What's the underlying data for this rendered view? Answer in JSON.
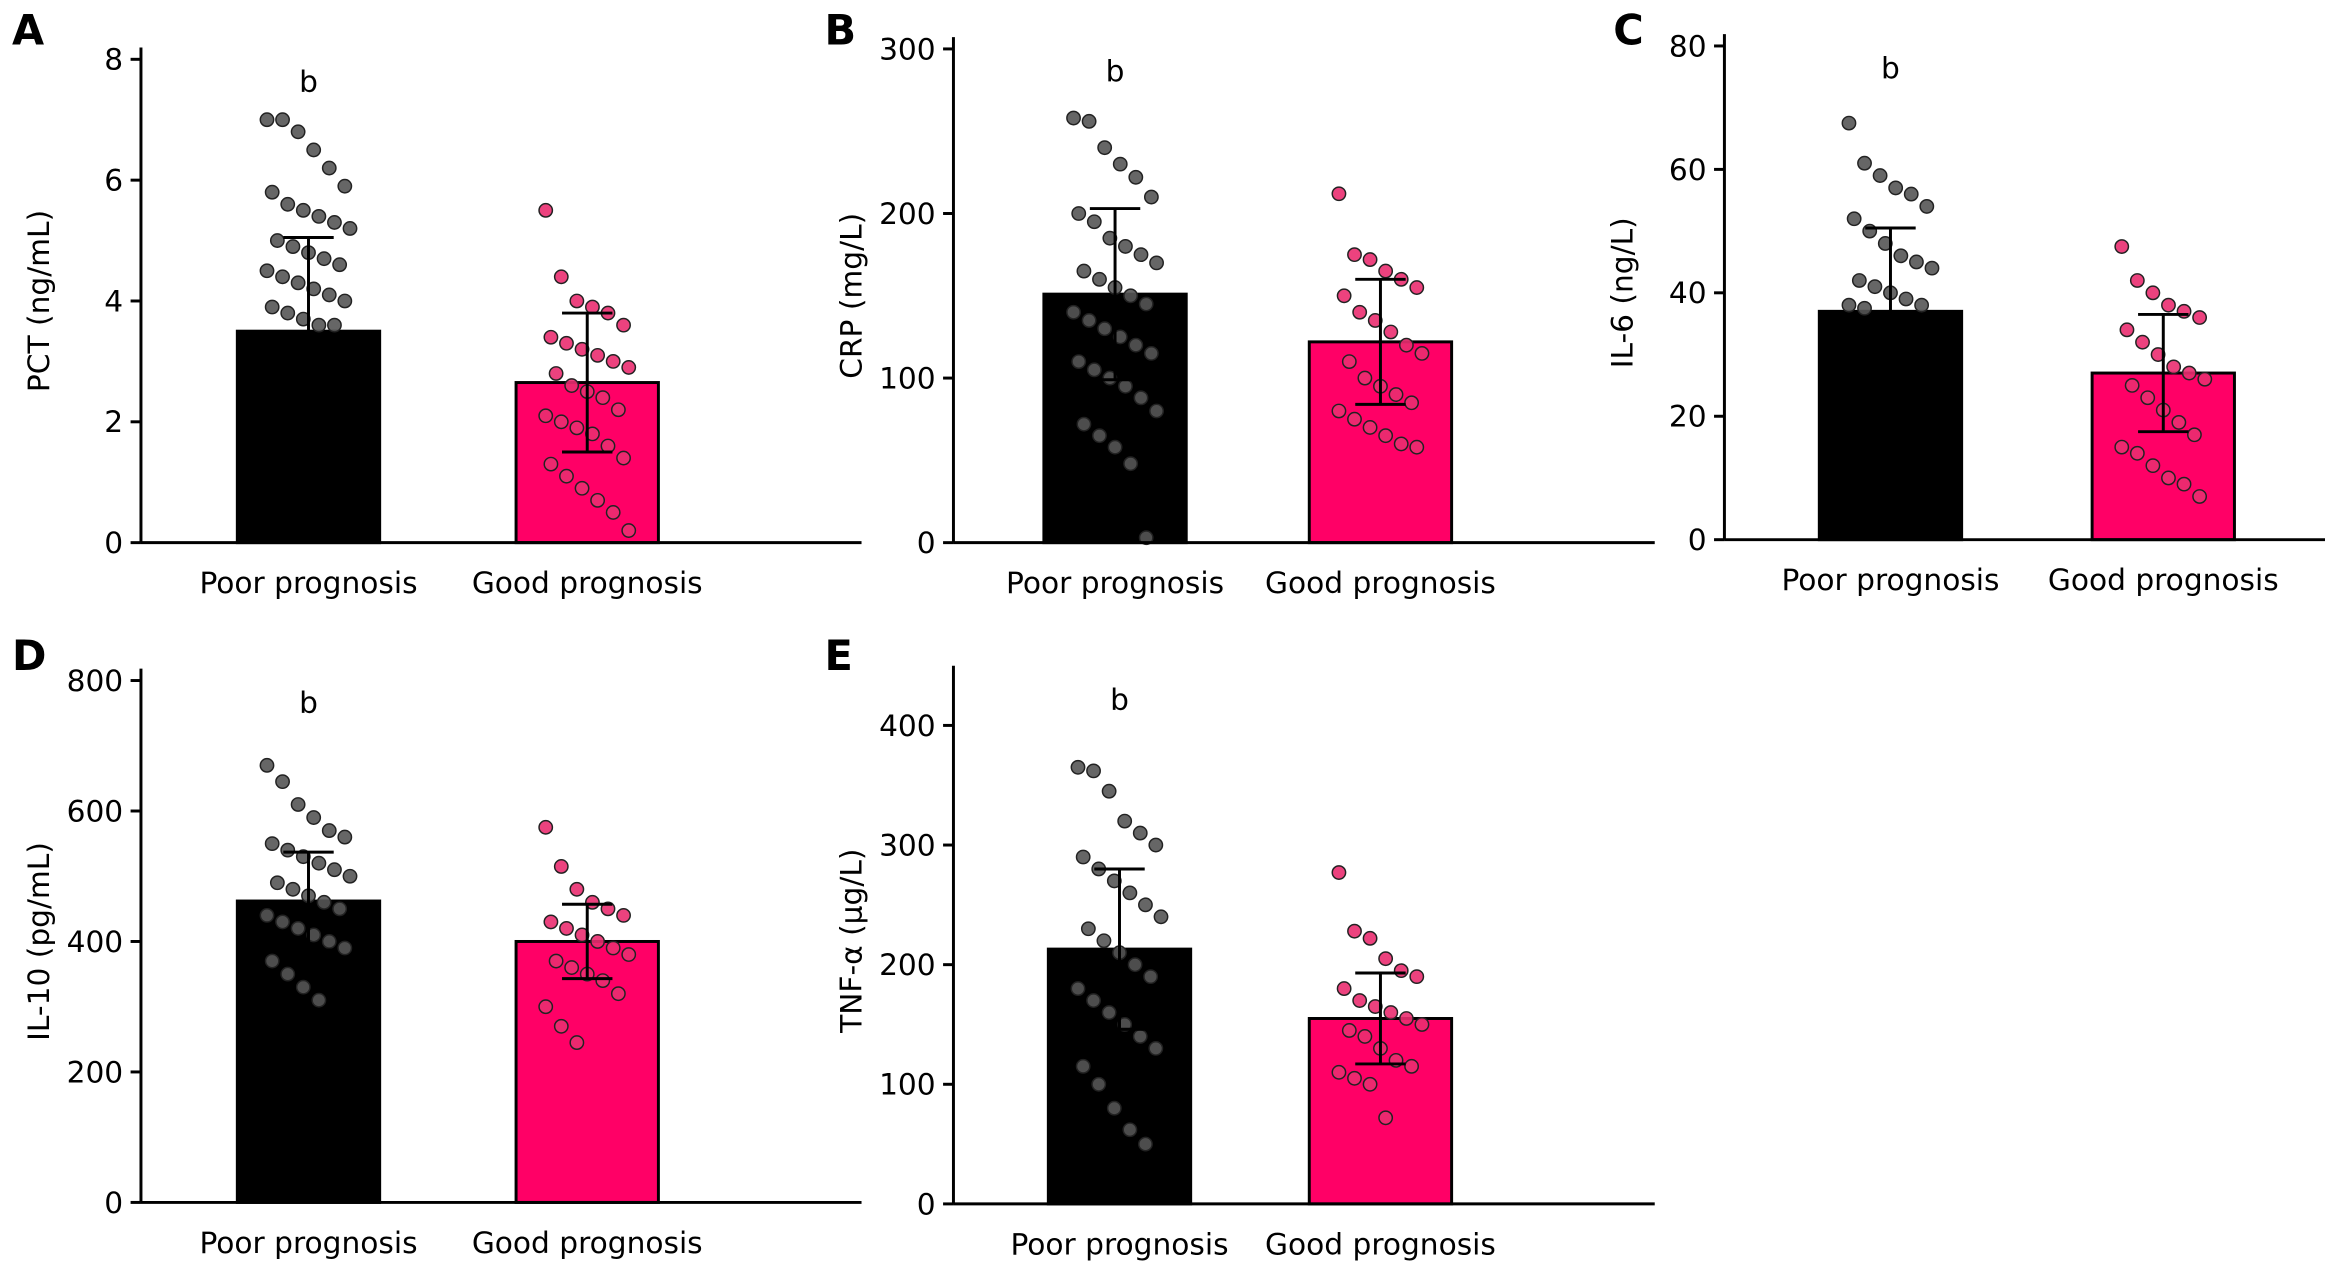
{
  "chart_data": [
    {
      "type": "bar",
      "panel": "A",
      "y_label": "PCT (ng/mL)",
      "categories": [
        "Poor prognosis",
        "Good prognosis"
      ],
      "values": [
        3.5,
        2.65
      ],
      "errors": [
        1.55,
        1.15
      ],
      "colors": [
        "#000000",
        "#ff0066"
      ],
      "point_colors": [
        "#555555",
        "#ea2d70"
      ],
      "ylim": [
        0,
        8
      ],
      "yticks": [
        0,
        2,
        4,
        6,
        8
      ],
      "annotations": [
        "b",
        null
      ],
      "points": [
        [
          7.0,
          7.0,
          6.8,
          6.5,
          6.2,
          5.9,
          5.8,
          5.6,
          5.5,
          5.4,
          5.3,
          5.2,
          5.0,
          4.9,
          4.8,
          4.7,
          4.6,
          4.5,
          4.4,
          4.3,
          4.2,
          4.1,
          4.0,
          3.9,
          3.8,
          3.7,
          3.6,
          3.6
        ],
        [
          5.5,
          4.4,
          4.0,
          3.9,
          3.8,
          3.6,
          3.4,
          3.3,
          3.2,
          3.1,
          3.0,
          2.9,
          2.8,
          2.6,
          2.5,
          2.4,
          2.2,
          2.1,
          2.0,
          1.9,
          1.8,
          1.6,
          1.4,
          1.3,
          1.1,
          0.9,
          0.7,
          0.5,
          0.2
        ]
      ]
    },
    {
      "type": "bar",
      "panel": "B",
      "y_label": "CRP (mg/L)",
      "categories": [
        "Poor prognosis",
        "Good prognosis"
      ],
      "values": [
        151,
        122
      ],
      "errors": [
        52,
        38
      ],
      "colors": [
        "#000000",
        "#ff0066"
      ],
      "point_colors": [
        "#555555",
        "#ea2d70"
      ],
      "ylim": [
        0,
        300
      ],
      "yticks": [
        0,
        100,
        200,
        300
      ],
      "annotations": [
        "b",
        null
      ],
      "points": [
        [
          258,
          256,
          240,
          230,
          222,
          210,
          200,
          195,
          185,
          180,
          175,
          170,
          165,
          160,
          155,
          150,
          145,
          140,
          135,
          130,
          125,
          120,
          115,
          110,
          105,
          100,
          95,
          88,
          80,
          72,
          65,
          58,
          48,
          3
        ],
        [
          212,
          175,
          172,
          165,
          160,
          155,
          150,
          140,
          135,
          128,
          120,
          115,
          110,
          100,
          95,
          90,
          85,
          80,
          75,
          70,
          65,
          60,
          58
        ]
      ]
    },
    {
      "type": "bar",
      "panel": "C",
      "y_label": "IL-6 (ng/L)",
      "categories": [
        "Poor prognosis",
        "Good prognosis"
      ],
      "values": [
        37,
        27
      ],
      "errors": [
        13.5,
        9.5
      ],
      "colors": [
        "#000000",
        "#ff0066"
      ],
      "point_colors": [
        "#555555",
        "#ea2d70"
      ],
      "ylim": [
        0,
        80
      ],
      "yticks": [
        0,
        20,
        40,
        60,
        80
      ],
      "annotations": [
        "b",
        null
      ],
      "points": [
        [
          67.5,
          61,
          59,
          57,
          56,
          54,
          52,
          50,
          48,
          46,
          45,
          44,
          42,
          41,
          40,
          39,
          38,
          38,
          37.5
        ],
        [
          47.5,
          42,
          40,
          38,
          37,
          36,
          34,
          32,
          30,
          28,
          27,
          26,
          25,
          23,
          21,
          19,
          17,
          15,
          14,
          12,
          10,
          9,
          7
        ]
      ]
    },
    {
      "type": "bar",
      "panel": "D",
      "y_label": "IL-10 (pg/mL)",
      "categories": [
        "Poor prognosis",
        "Good prognosis"
      ],
      "values": [
        462,
        400
      ],
      "errors": [
        75,
        57
      ],
      "colors": [
        "#000000",
        "#ff0066"
      ],
      "point_colors": [
        "#555555",
        "#ea2d70"
      ],
      "ylim": [
        0,
        800
      ],
      "yticks": [
        0,
        200,
        400,
        600,
        800
      ],
      "annotations": [
        "b",
        null
      ],
      "points": [
        [
          670,
          645,
          610,
          590,
          570,
          560,
          550,
          540,
          530,
          520,
          510,
          500,
          490,
          480,
          470,
          460,
          450,
          440,
          430,
          420,
          410,
          400,
          390,
          370,
          350,
          330,
          310
        ],
        [
          575,
          515,
          480,
          460,
          450,
          440,
          430,
          420,
          410,
          400,
          390,
          380,
          370,
          360,
          350,
          340,
          320,
          300,
          270,
          245
        ]
      ]
    },
    {
      "type": "bar",
      "panel": "E",
      "y_label": "TNF-α (μg/L)",
      "categories": [
        "Poor prognosis",
        "Good prognosis"
      ],
      "values": [
        213,
        155
      ],
      "errors": [
        67,
        38
      ],
      "colors": [
        "#000000",
        "#ff0066"
      ],
      "point_colors": [
        "#555555",
        "#ea2d70"
      ],
      "ylim": [
        0,
        440
      ],
      "yticks": [
        0,
        100,
        200,
        300,
        400
      ],
      "annotations": [
        "b",
        null
      ],
      "points": [
        [
          365,
          362,
          345,
          320,
          310,
          300,
          290,
          280,
          270,
          260,
          250,
          240,
          230,
          220,
          210,
          200,
          190,
          180,
          170,
          160,
          150,
          140,
          130,
          115,
          100,
          80,
          62,
          50
        ],
        [
          277,
          228,
          222,
          205,
          195,
          190,
          180,
          170,
          165,
          160,
          155,
          150,
          145,
          140,
          130,
          120,
          115,
          110,
          105,
          100,
          72
        ]
      ]
    }
  ]
}
